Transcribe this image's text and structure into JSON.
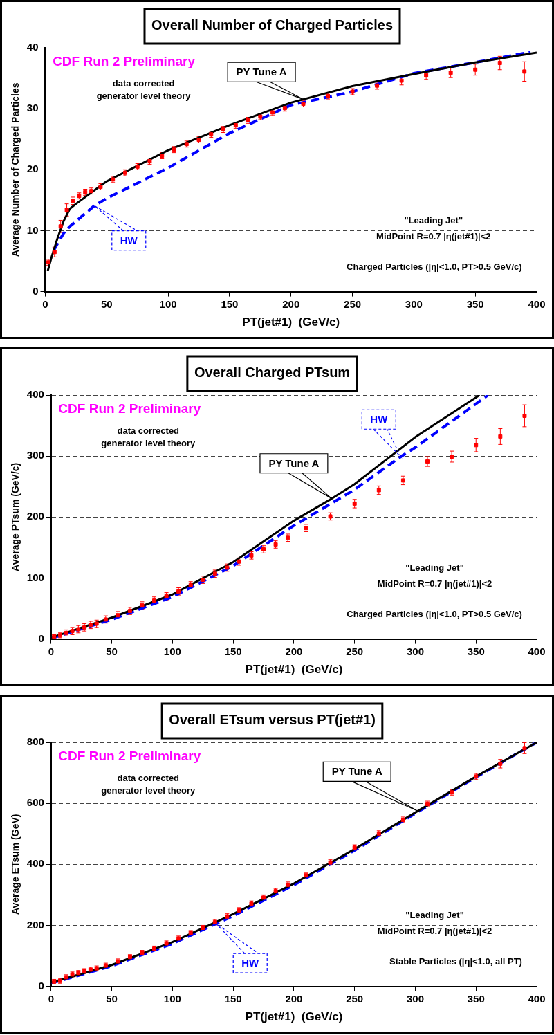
{
  "chart_data": [
    {
      "type": "scatter",
      "title": "Overall Number of Charged Particles",
      "xlabel": "PT(jet#1)  (GeV/c)",
      "ylabel": "Average Number of Charged Particles",
      "xlim": [
        0,
        400
      ],
      "xticks": [
        0,
        50,
        100,
        150,
        200,
        250,
        300,
        350,
        400
      ],
      "ylim": [
        0,
        40
      ],
      "yticks": [
        0,
        10,
        20,
        30,
        40
      ],
      "grid": "y",
      "annotations": [
        "CDF Run 2 Preliminary",
        "data corrected",
        "generator level theory",
        "\"Leading Jet\"",
        "MidPoint R=0.7 |η(jet#1)|<2",
        "Charged Particles (|η|<1.0, PT>0.5 GeV/c)"
      ],
      "series": [
        {
          "type": "scatter",
          "color": "#ff0000",
          "marker": "square",
          "x": [
            2.5,
            7.5,
            12.5,
            17.5,
            22.5,
            27.5,
            32.5,
            37.5,
            45,
            55,
            65,
            75,
            85,
            95,
            105,
            115,
            125,
            135,
            145,
            155,
            165,
            175,
            185,
            195,
            210,
            230,
            250,
            270,
            290,
            310,
            330,
            350,
            370,
            390
          ],
          "values": [
            4.8,
            6.5,
            10.7,
            13.4,
            14.9,
            15.7,
            16.3,
            16.5,
            17.2,
            18.4,
            19.5,
            20.5,
            21.4,
            22.3,
            23.3,
            24.2,
            24.9,
            25.8,
            26.6,
            27.3,
            28.1,
            28.7,
            29.4,
            30.1,
            30.8,
            32.1,
            32.8,
            33.8,
            34.6,
            35.5,
            35.9,
            36.4,
            37.5,
            36.1
          ],
          "errors": [
            0.5,
            0.8,
            1,
            1,
            0.6,
            0.5,
            0.5,
            0.5,
            0.5,
            0.5,
            0.5,
            0.5,
            0.5,
            0.5,
            0.5,
            0.5,
            0.5,
            0.5,
            0.5,
            0.5,
            0.5,
            0.5,
            0.5,
            0.5,
            0.5,
            0.5,
            0.5,
            0.6,
            0.7,
            0.7,
            0.8,
            0.9,
            1.1,
            1.6
          ]
        },
        {
          "name": "PY Tune A",
          "type": "line",
          "color": "#000000",
          "line_style": "solid",
          "marker": "none",
          "x": [
            2,
            5,
            10,
            15,
            20,
            25,
            50,
            100,
            150,
            200,
            250,
            300,
            350,
            400
          ],
          "values": [
            3.4,
            5.6,
            8.8,
            11.6,
            13.6,
            14.4,
            18.1,
            23.2,
            27.3,
            31,
            33.7,
            35.7,
            37.6,
            39.2
          ]
        },
        {
          "name": "HW",
          "type": "line",
          "color": "#0000ff",
          "line_style": "dashed",
          "marker": "none",
          "x": [
            7,
            10,
            15,
            20,
            30,
            40,
            50,
            100,
            150,
            200,
            250,
            300,
            350,
            395
          ],
          "values": [
            6.8,
            7.9,
            9.6,
            10.7,
            12.4,
            14.1,
            15.3,
            20.3,
            26,
            30.6,
            32.8,
            35.8,
            37.6,
            39.3
          ]
        }
      ]
    },
    {
      "type": "scatter",
      "title": "Overall Charged PTsum",
      "xlabel": "PT(jet#1)  (GeV/c)",
      "ylabel": "Average PTsum (GeV/c)",
      "xlim": [
        0,
        400
      ],
      "xticks": [
        0,
        50,
        100,
        150,
        200,
        250,
        300,
        350,
        400
      ],
      "ylim": [
        0,
        400
      ],
      "yticks": [
        0,
        100,
        200,
        300,
        400
      ],
      "grid": "y",
      "annotations": [
        "CDF Run 2 Preliminary",
        "data corrected",
        "generator level theory",
        "\"Leading Jet\"",
        "MidPoint R=0.7 |η(jet#1)|<2",
        "Charged Particles (|η|<1.0, PT>0.5 GeV/c)"
      ],
      "series": [
        {
          "type": "scatter",
          "color": "#ff0000",
          "marker": "square",
          "x": [
            2.5,
            7.5,
            12.5,
            17.5,
            22.5,
            27.5,
            32.5,
            37.5,
            45,
            55,
            65,
            75,
            85,
            95,
            105,
            115,
            125,
            135,
            145,
            155,
            165,
            175,
            185,
            195,
            210,
            230,
            250,
            270,
            290,
            310,
            330,
            350,
            370,
            390
          ],
          "values": [
            4,
            6,
            10,
            13,
            16,
            19,
            23,
            25,
            32,
            39,
            46,
            55,
            63,
            70,
            78,
            88,
            97,
            107,
            117,
            127,
            137,
            147,
            155,
            166,
            182,
            201,
            222,
            244,
            260,
            291,
            299,
            318,
            332,
            366
          ],
          "errors": [
            3,
            4,
            5,
            6,
            6,
            6,
            6,
            6,
            6,
            6,
            6,
            6,
            6,
            6,
            6,
            6,
            6,
            6,
            6,
            6,
            6,
            6,
            6,
            6,
            6,
            6,
            7,
            7,
            7,
            8,
            9,
            11,
            13,
            18
          ]
        },
        {
          "name": "PY Tune A",
          "type": "line",
          "color": "#000000",
          "line_style": "solid",
          "marker": "none",
          "x": [
            0,
            50,
            100,
            150,
            200,
            231,
            250,
            300,
            353
          ],
          "values": [
            2,
            35,
            73,
            126,
            194,
            230,
            254,
            331,
            400
          ]
        },
        {
          "name": "HW",
          "type": "line",
          "color": "#0000ff",
          "line_style": "dashed",
          "marker": "none",
          "x": [
            0,
            50,
            100,
            150,
            200,
            250,
            288,
            300,
            360
          ],
          "values": [
            1,
            32,
            69,
            120,
            186,
            245,
            299,
            314,
            400
          ]
        }
      ]
    },
    {
      "type": "scatter",
      "title": "Overall ETsum versus PT(jet#1)",
      "xlabel": "PT(jet#1)  (GeV/c)",
      "ylabel": "Average ETsum (GeV)",
      "xlim": [
        0,
        400
      ],
      "xticks": [
        0,
        50,
        100,
        150,
        200,
        250,
        300,
        350,
        400
      ],
      "ylim": [
        0,
        800
      ],
      "yticks": [
        0,
        200,
        400,
        600,
        800
      ],
      "grid": "y",
      "annotations": [
        "CDF Run 2 Preliminary",
        "data corrected",
        "generator level theory",
        "\"Leading Jet\"",
        "MidPoint R=0.7 |η(jet#1)|<2",
        "Stable Particles (|η|<1.0, all PT)"
      ],
      "series": [
        {
          "type": "scatter",
          "color": "#ff0000",
          "marker": "square",
          "x": [
            2.5,
            7.5,
            12.5,
            17.5,
            22.5,
            27.5,
            32.5,
            37.5,
            45,
            55,
            65,
            75,
            85,
            95,
            105,
            115,
            125,
            135,
            145,
            155,
            165,
            175,
            185,
            195,
            210,
            230,
            250,
            270,
            290,
            310,
            330,
            350,
            370,
            390
          ],
          "values": [
            15,
            18,
            30,
            39,
            44,
            50,
            55,
            59,
            68,
            82,
            96,
            110,
            124,
            141,
            157,
            175,
            192,
            210,
            229,
            249,
            271,
            291,
            312,
            333,
            364,
            406,
            455,
            501,
            546,
            598,
            636,
            688,
            730,
            781
          ],
          "errors": [
            8,
            8,
            8,
            8,
            8,
            8,
            8,
            8,
            8,
            8,
            8,
            8,
            8,
            8,
            8,
            8,
            8,
            9,
            9,
            9,
            9,
            9,
            9,
            9,
            9,
            9,
            9,
            9,
            9,
            9,
            9,
            10,
            14,
            18
          ]
        },
        {
          "name": "PY Tune A",
          "type": "line",
          "color": "#000000",
          "line_style": "solid",
          "marker": "none",
          "x": [
            0,
            50,
            100,
            150,
            200,
            250,
            300,
            350,
            400
          ],
          "values": [
            12,
            70,
            145,
            237,
            337,
            450,
            570,
            688,
            800
          ]
        },
        {
          "name": "HW",
          "type": "line",
          "color": "#0000ff",
          "line_style": "dashed",
          "marker": "none",
          "x": [
            0,
            50,
            100,
            150,
            200,
            250,
            300,
            350,
            400
          ],
          "values": [
            10,
            67,
            140,
            231,
            332,
            446,
            567,
            686,
            800
          ]
        }
      ]
    }
  ]
}
